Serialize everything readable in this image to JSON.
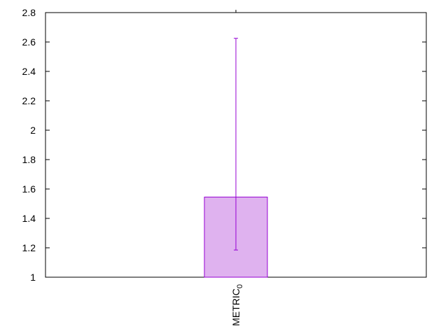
{
  "chart_data": {
    "type": "bar",
    "categories": [
      "METRIC"
    ],
    "category_subscripts": [
      "0"
    ],
    "values": [
      1.545
    ],
    "error_bars": [
      {
        "low": 1.185,
        "high": 2.625
      }
    ],
    "ylim": [
      1,
      2.8
    ],
    "yticks": [
      1,
      1.2,
      1.4,
      1.6,
      1.8,
      2,
      2.2,
      2.4,
      2.6,
      2.8
    ],
    "ytick_labels": [
      "1",
      "1.2",
      "1.4",
      "1.6",
      "1.8",
      "2",
      "2.2",
      "2.4",
      "2.6",
      "2.8"
    ],
    "grid": false,
    "colors": {
      "bar_fill": "#dfb2ef",
      "bar_stroke": "#9400d3",
      "error_bar": "#9400d3",
      "axis": "#000000"
    }
  }
}
